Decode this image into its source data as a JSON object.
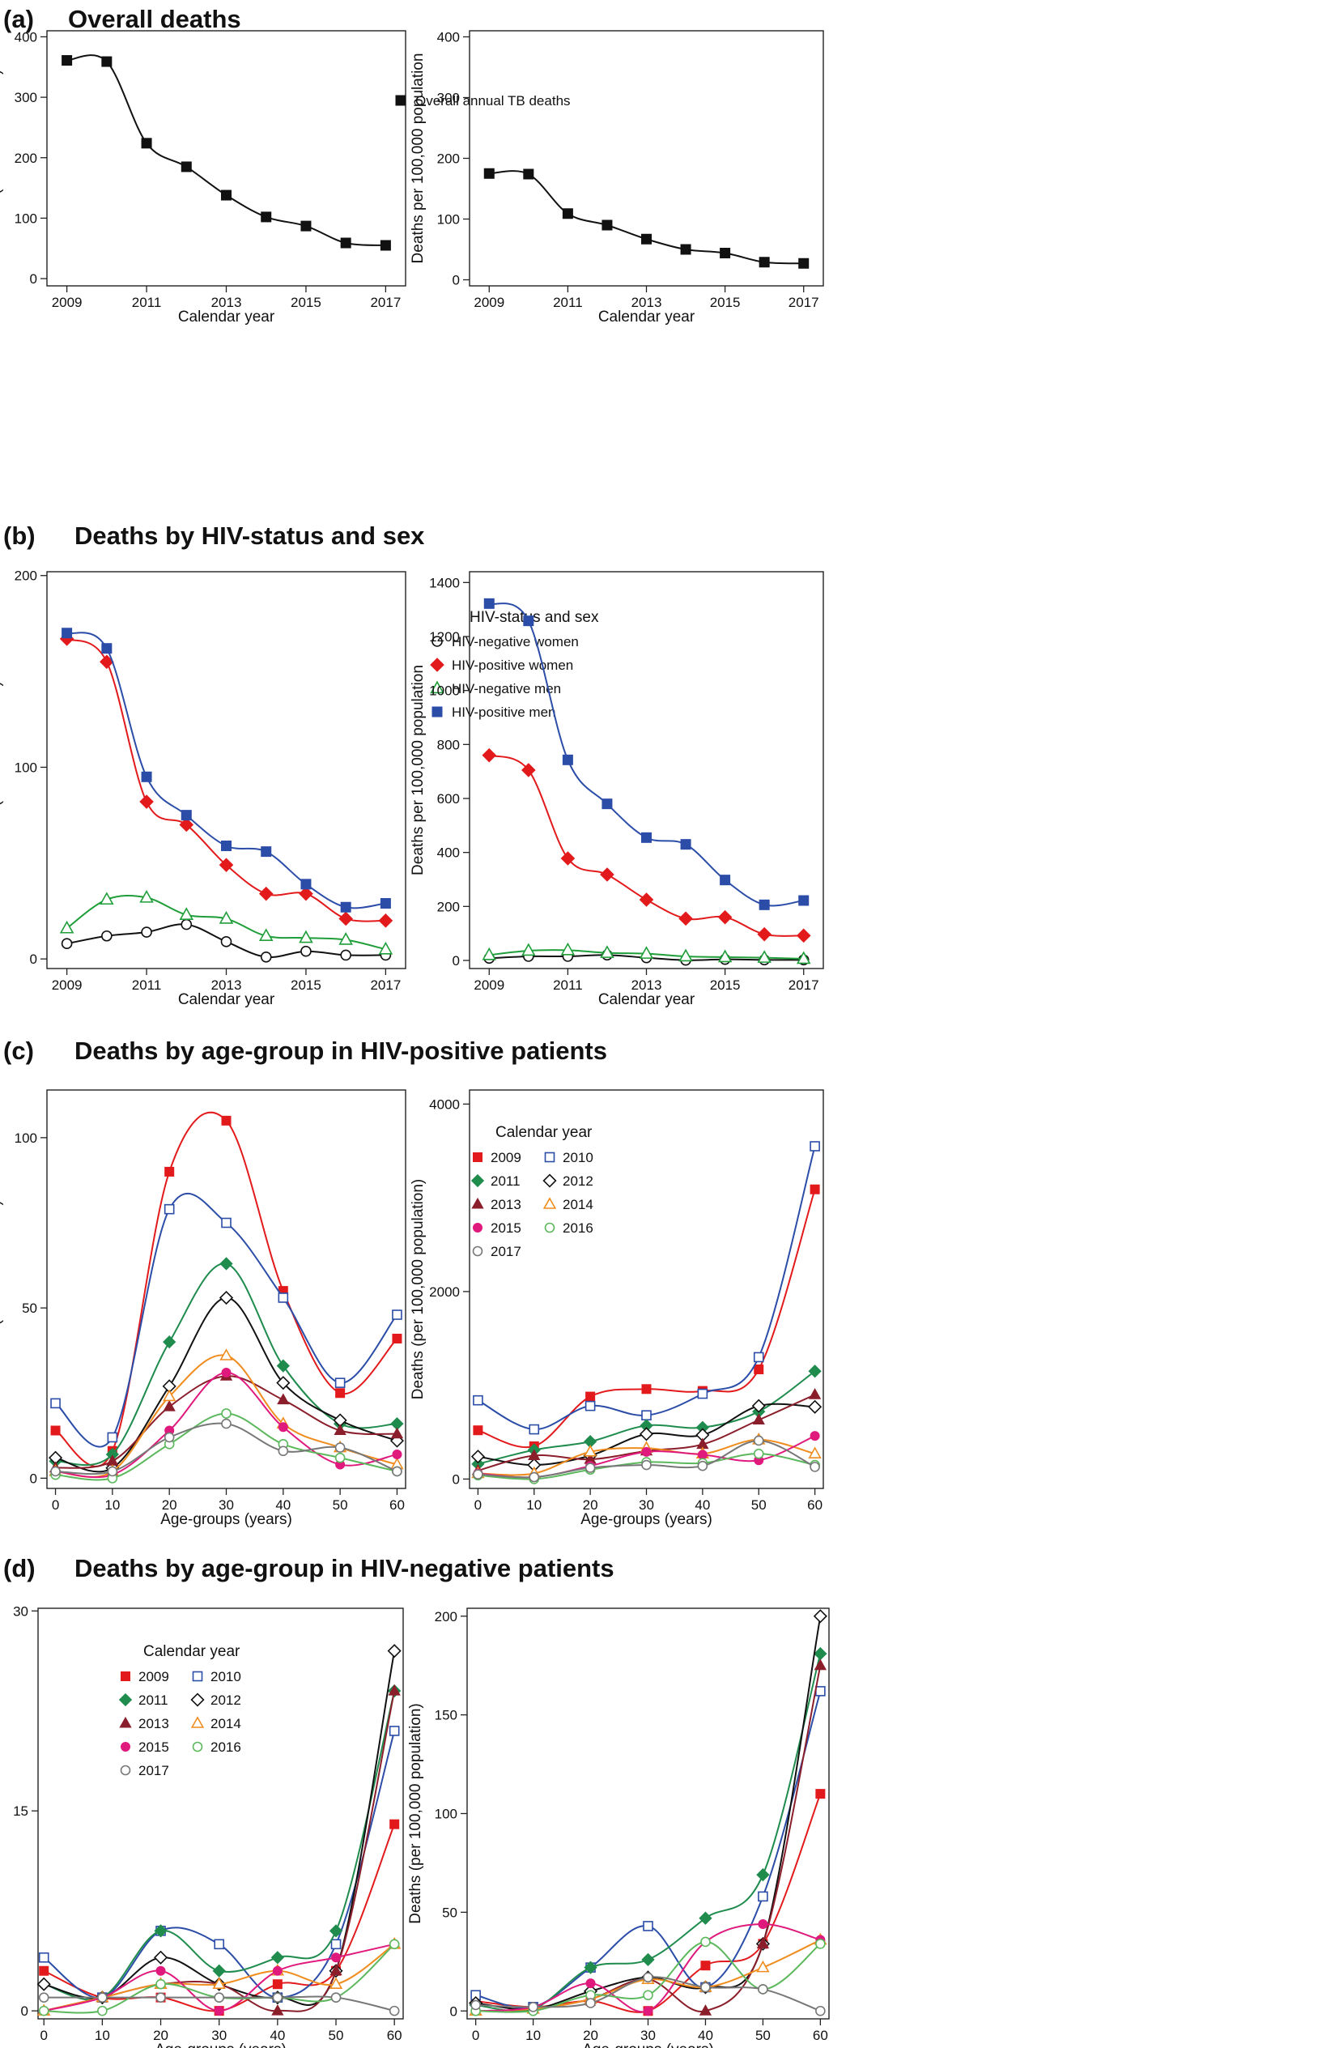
{
  "sections": [
    {
      "label": "(a)",
      "title": "Overall deaths"
    },
    {
      "label": "(b)",
      "title": "Deaths by HIV-status and sex"
    },
    {
      "label": "(c)",
      "title": "Deaths by age-group in HIV-positive patients"
    },
    {
      "label": "(d)",
      "title": "Deaths by age-group in HIV-negative patients"
    }
  ],
  "chart_data": [
    {
      "id": "a-left",
      "section": 0,
      "type": "line",
      "xlabel": "Calendar year",
      "ylabel": "Deaths (absolute number)",
      "xlim": [
        2008.5,
        2017.5
      ],
      "ylim": [
        -12,
        410
      ],
      "xticks": [
        2009,
        2011,
        2013,
        2015,
        2017
      ],
      "yticks": [
        0,
        100,
        200,
        300,
        400
      ],
      "legend_title": "",
      "legend_position": "top-right",
      "x": [
        2009,
        2010,
        2011,
        2012,
        2013,
        2014,
        2015,
        2016,
        2017
      ],
      "series": [
        {
          "name": "Overall annual TB deaths",
          "color": "#111111",
          "marker": "square-filled",
          "values": [
            361,
            359,
            224,
            185,
            138,
            102,
            87,
            59,
            55
          ]
        }
      ]
    },
    {
      "id": "a-right",
      "section": 0,
      "type": "line",
      "xlabel": "Calendar year",
      "ylabel": "Deaths per 100,000 population",
      "xlim": [
        2008.5,
        2017.5
      ],
      "ylim": [
        -10,
        410
      ],
      "xticks": [
        2009,
        2011,
        2013,
        2015,
        2017
      ],
      "yticks": [
        0,
        100,
        200,
        300,
        400
      ],
      "legend_title": "",
      "legend_position": "none",
      "x": [
        2009,
        2010,
        2011,
        2012,
        2013,
        2014,
        2015,
        2016,
        2017
      ],
      "series": [
        {
          "color": "#111111",
          "marker": "square-filled",
          "values": [
            175,
            174,
            109,
            90,
            67,
            50,
            44,
            29,
            27
          ]
        }
      ]
    },
    {
      "id": "b-left",
      "section": 1,
      "type": "line",
      "xlabel": "Calendar year",
      "ylabel": "Deaths (absolute number)",
      "xlim": [
        2008.5,
        2017.5
      ],
      "ylim": [
        -5,
        202
      ],
      "xticks": [
        2009,
        2011,
        2013,
        2015,
        2017
      ],
      "yticks": [
        0,
        100,
        200
      ],
      "legend_title": "HIV-status and sex",
      "legend_position": "top-right",
      "x": [
        2009,
        2010,
        2011,
        2012,
        2013,
        2014,
        2015,
        2016,
        2017
      ],
      "series": [
        {
          "name": "HIV-negative women",
          "color": "#111111",
          "marker": "circle-open",
          "values": [
            8,
            12,
            14,
            18,
            9,
            1,
            4,
            2,
            2
          ]
        },
        {
          "name": "HIV-positive women",
          "color": "#e31a1c",
          "marker": "diamond-filled",
          "values": [
            167,
            155,
            82,
            70,
            49,
            34,
            34,
            21,
            20
          ]
        },
        {
          "name": "HIV-negative men",
          "color": "#1f9e3a",
          "marker": "triangle-open",
          "values": [
            16,
            31,
            32,
            23,
            21,
            12,
            11,
            10,
            5
          ]
        },
        {
          "name": "HIV-positive men",
          "color": "#2b4da8",
          "marker": "square-filled",
          "values": [
            170,
            162,
            95,
            75,
            59,
            56,
            39,
            27,
            29
          ]
        }
      ]
    },
    {
      "id": "b-right",
      "section": 1,
      "type": "line",
      "xlabel": "Calendar year",
      "ylabel": "Deaths per 100,000 population",
      "xlim": [
        2008.5,
        2017.5
      ],
      "ylim": [
        -30,
        1440
      ],
      "xticks": [
        2009,
        2011,
        2013,
        2015,
        2017
      ],
      "yticks": [
        0,
        200,
        400,
        600,
        800,
        1000,
        1200,
        1400
      ],
      "legend_title": "",
      "legend_position": "none",
      "x": [
        2009,
        2010,
        2011,
        2012,
        2013,
        2014,
        2015,
        2016,
        2017
      ],
      "series": [
        {
          "color": "#111111",
          "marker": "circle-open",
          "values": [
            8,
            15,
            15,
            20,
            10,
            1,
            4,
            2,
            2
          ]
        },
        {
          "color": "#e31a1c",
          "marker": "diamond-filled",
          "values": [
            760,
            705,
            378,
            318,
            225,
            155,
            160,
            97,
            92
          ]
        },
        {
          "color": "#1f9e3a",
          "marker": "triangle-open",
          "values": [
            20,
            36,
            38,
            28,
            25,
            15,
            12,
            10,
            6
          ]
        },
        {
          "color": "#2b4da8",
          "marker": "square-filled",
          "values": [
            1322,
            1258,
            743,
            580,
            455,
            430,
            298,
            206,
            222
          ]
        }
      ]
    },
    {
      "id": "c-left",
      "section": 2,
      "type": "line",
      "xlabel": "Age-groups (years)",
      "ylabel": "Deaths (absolute number)",
      "xlim": [
        -1.5,
        61.5
      ],
      "ylim": [
        -3,
        114
      ],
      "xticks": [
        0,
        10,
        20,
        30,
        40,
        50,
        60
      ],
      "yticks": [
        0,
        50,
        100
      ],
      "legend_title": "Calendar year",
      "legend_position": "top-right",
      "x": [
        0,
        10,
        20,
        30,
        40,
        50,
        60
      ],
      "series": [
        {
          "name": "2009",
          "color": "#e31a1c",
          "marker": "square-filled",
          "values": [
            14,
            8,
            90,
            105,
            55,
            25,
            41
          ]
        },
        {
          "name": "2010",
          "color": "#2b4da8",
          "marker": "square-open",
          "values": [
            22,
            12,
            79,
            75,
            53,
            28,
            48
          ]
        },
        {
          "name": "2011",
          "color": "#1f8c4e",
          "marker": "diamond-filled",
          "values": [
            5,
            7,
            40,
            63,
            33,
            16,
            16
          ]
        },
        {
          "name": "2012",
          "color": "#111111",
          "marker": "diamond-open",
          "values": [
            6,
            3,
            27,
            53,
            28,
            17,
            11
          ]
        },
        {
          "name": "2013",
          "color": "#8b1e2b",
          "marker": "triangle-filled",
          "values": [
            3,
            5,
            21,
            30,
            23,
            14,
            13
          ]
        },
        {
          "name": "2014",
          "color": "#f08c1e",
          "marker": "triangle-open",
          "values": [
            2,
            2,
            24,
            36,
            16,
            9,
            4
          ]
        },
        {
          "name": "2015",
          "color": "#e0197d",
          "marker": "circle-filled",
          "values": [
            2,
            1,
            14,
            31,
            15,
            4,
            7
          ]
        },
        {
          "name": "2016",
          "color": "#5cb85c",
          "marker": "circle-open",
          "values": [
            1,
            0,
            10,
            19,
            10,
            6,
            2
          ]
        },
        {
          "name": "2017",
          "color": "#777777",
          "marker": "circle-open",
          "values": [
            2,
            2,
            12,
            16,
            8,
            9,
            2
          ]
        }
      ]
    },
    {
      "id": "c-right",
      "section": 2,
      "type": "line",
      "xlabel": "Age-groups (years)",
      "ylabel": "Deaths (per 100,000 population)",
      "xlim": [
        -1.5,
        61.5
      ],
      "ylim": [
        -100,
        4150
      ],
      "xticks": [
        0,
        10,
        20,
        30,
        40,
        50,
        60
      ],
      "yticks": [
        0,
        2000,
        4000
      ],
      "legend_title": "",
      "legend_position": "none",
      "x": [
        0,
        10,
        20,
        30,
        40,
        50,
        60
      ],
      "series": [
        {
          "color": "#e31a1c",
          "marker": "square-filled",
          "values": [
            520,
            350,
            880,
            960,
            940,
            1170,
            3090
          ]
        },
        {
          "color": "#2b4da8",
          "marker": "square-open",
          "values": [
            840,
            530,
            780,
            680,
            910,
            1300,
            3550
          ]
        },
        {
          "color": "#1f8c4e",
          "marker": "diamond-filled",
          "values": [
            160,
            310,
            400,
            570,
            550,
            720,
            1150
          ]
        },
        {
          "color": "#111111",
          "marker": "diamond-open",
          "values": [
            240,
            150,
            250,
            480,
            470,
            780,
            770
          ]
        },
        {
          "color": "#8b1e2b",
          "marker": "triangle-filled",
          "values": [
            90,
            250,
            210,
            300,
            370,
            630,
            900
          ]
        },
        {
          "color": "#f08c1e",
          "marker": "triangle-open",
          "values": [
            60,
            60,
            290,
            330,
            270,
            420,
            270
          ]
        },
        {
          "color": "#e0197d",
          "marker": "circle-filled",
          "values": [
            60,
            20,
            140,
            290,
            260,
            200,
            460
          ]
        },
        {
          "color": "#5cb85c",
          "marker": "circle-open",
          "values": [
            40,
            0,
            100,
            180,
            170,
            270,
            150
          ]
        },
        {
          "color": "#777777",
          "marker": "circle-open",
          "values": [
            50,
            20,
            120,
            150,
            140,
            410,
            130
          ]
        }
      ]
    },
    {
      "id": "d-left",
      "section": 3,
      "type": "line",
      "xlabel": "Age-groups (years)",
      "ylabel": "Deaths (absolute number)",
      "xlim": [
        -1,
        61.5
      ],
      "ylim": [
        -0.6,
        30.2
      ],
      "xticks": [
        0,
        10,
        20,
        30,
        40,
        50,
        60
      ],
      "yticks": [
        0,
        15,
        30
      ],
      "legend_title": "Calendar year",
      "legend_position": "top-left",
      "x": [
        0,
        10,
        20,
        30,
        40,
        50,
        60
      ],
      "series": [
        {
          "name": "2009",
          "color": "#e31a1c",
          "marker": "square-filled",
          "values": [
            3,
            1,
            1,
            0,
            2,
            3,
            14
          ]
        },
        {
          "name": "2010",
          "color": "#2b4da8",
          "marker": "square-open",
          "values": [
            4,
            1,
            6,
            5,
            1,
            5,
            21
          ]
        },
        {
          "name": "2011",
          "color": "#1f8c4e",
          "marker": "diamond-filled",
          "values": [
            2,
            1,
            6,
            3,
            4,
            6,
            24
          ]
        },
        {
          "name": "2012",
          "color": "#111111",
          "marker": "diamond-open",
          "values": [
            2,
            1,
            4,
            2,
            1,
            3,
            27
          ]
        },
        {
          "name": "2013",
          "color": "#8b1e2b",
          "marker": "triangle-filled",
          "values": [
            0,
            1,
            2,
            2,
            0,
            3,
            24
          ]
        },
        {
          "name": "2014",
          "color": "#f08c1e",
          "marker": "triangle-open",
          "values": [
            0,
            1,
            2,
            2,
            3,
            2,
            5
          ]
        },
        {
          "name": "2015",
          "color": "#e0197d",
          "marker": "circle-filled",
          "values": [
            0,
            1,
            3,
            0,
            3,
            4,
            5
          ]
        },
        {
          "name": "2016",
          "color": "#5cb85c",
          "marker": "circle-open",
          "values": [
            0,
            0,
            2,
            1,
            1,
            1,
            5
          ]
        },
        {
          "name": "2017",
          "color": "#777777",
          "marker": "circle-open",
          "values": [
            1,
            1,
            1,
            1,
            1,
            1,
            0
          ]
        }
      ]
    },
    {
      "id": "d-right",
      "section": 3,
      "type": "line",
      "xlabel": "Age-groups (years)",
      "ylabel": "Deaths (per 100,000 population)",
      "xlim": [
        -1.5,
        61.5
      ],
      "ylim": [
        -4,
        204
      ],
      "xticks": [
        0,
        10,
        20,
        30,
        40,
        50,
        60
      ],
      "yticks": [
        0,
        50,
        100,
        150,
        200
      ],
      "legend_title": "",
      "legend_position": "none",
      "x": [
        0,
        10,
        20,
        30,
        40,
        50,
        60
      ],
      "series": [
        {
          "color": "#e31a1c",
          "marker": "square-filled",
          "values": [
            5,
            2,
            5,
            0,
            23,
            34,
            110
          ]
        },
        {
          "color": "#2b4da8",
          "marker": "square-open",
          "values": [
            8,
            2,
            22,
            43,
            12,
            58,
            162
          ]
        },
        {
          "color": "#1f8c4e",
          "marker": "diamond-filled",
          "values": [
            3,
            1,
            22,
            26,
            47,
            69,
            181
          ]
        },
        {
          "color": "#111111",
          "marker": "diamond-open",
          "values": [
            4,
            1,
            10,
            17,
            12,
            34,
            200
          ]
        },
        {
          "color": "#8b1e2b",
          "marker": "triangle-filled",
          "values": [
            0,
            1,
            6,
            16,
            0,
            34,
            175
          ]
        },
        {
          "color": "#f08c1e",
          "marker": "triangle-open",
          "values": [
            0,
            1,
            6,
            16,
            12,
            22,
            36
          ]
        },
        {
          "color": "#e0197d",
          "marker": "circle-filled",
          "values": [
            0,
            2,
            14,
            0,
            35,
            44,
            36
          ]
        },
        {
          "color": "#5cb85c",
          "marker": "circle-open",
          "values": [
            0,
            0,
            8,
            8,
            35,
            11,
            34
          ]
        },
        {
          "color": "#777777",
          "marker": "circle-open",
          "values": [
            3,
            2,
            4,
            17,
            12,
            11,
            0
          ]
        }
      ]
    }
  ]
}
